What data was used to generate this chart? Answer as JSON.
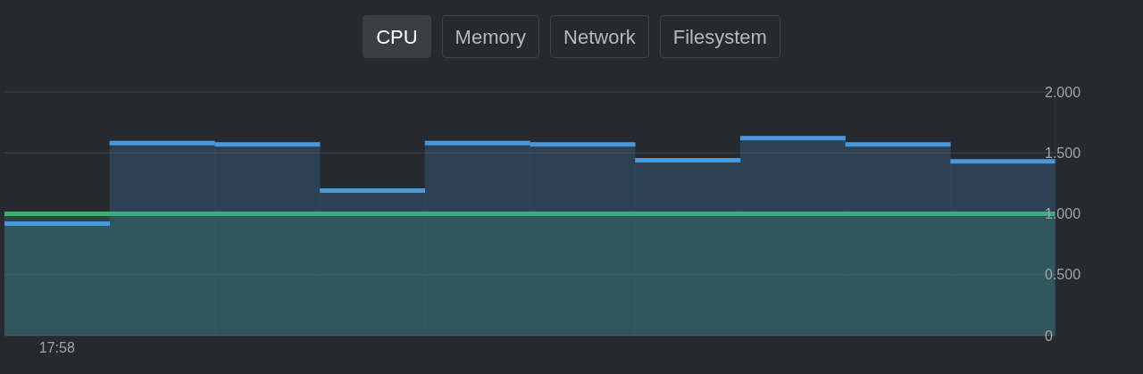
{
  "chart_data": {
    "type": "bar",
    "annotations": [
      "CPU",
      "Memory",
      "Network",
      "Filesystem"
    ],
    "categories": [
      "17:58",
      null,
      null,
      null,
      null,
      null,
      null,
      null,
      null,
      null
    ],
    "series": [
      {
        "color": "#4a98dc",
        "values": [
          0.92,
          1.58,
          1.57,
          1.19,
          1.58,
          1.57,
          1.44,
          1.62,
          1.57,
          1.43
        ]
      }
    ],
    "bands": [
      {
        "axis": "y",
        "from": 0,
        "to": 1,
        "color": "#3fae6a"
      }
    ],
    "ylim": [
      0,
      2
    ],
    "yticks": [
      0,
      {
        "value": 0.5,
        "label": "0.500"
      },
      {
        "value": 1,
        "label": "1.000"
      },
      {
        "value": 1.5,
        "label": "1.500"
      },
      {
        "value": 2,
        "label": "2.000"
      }
    ],
    "grid": "y",
    "legend": false
  }
}
